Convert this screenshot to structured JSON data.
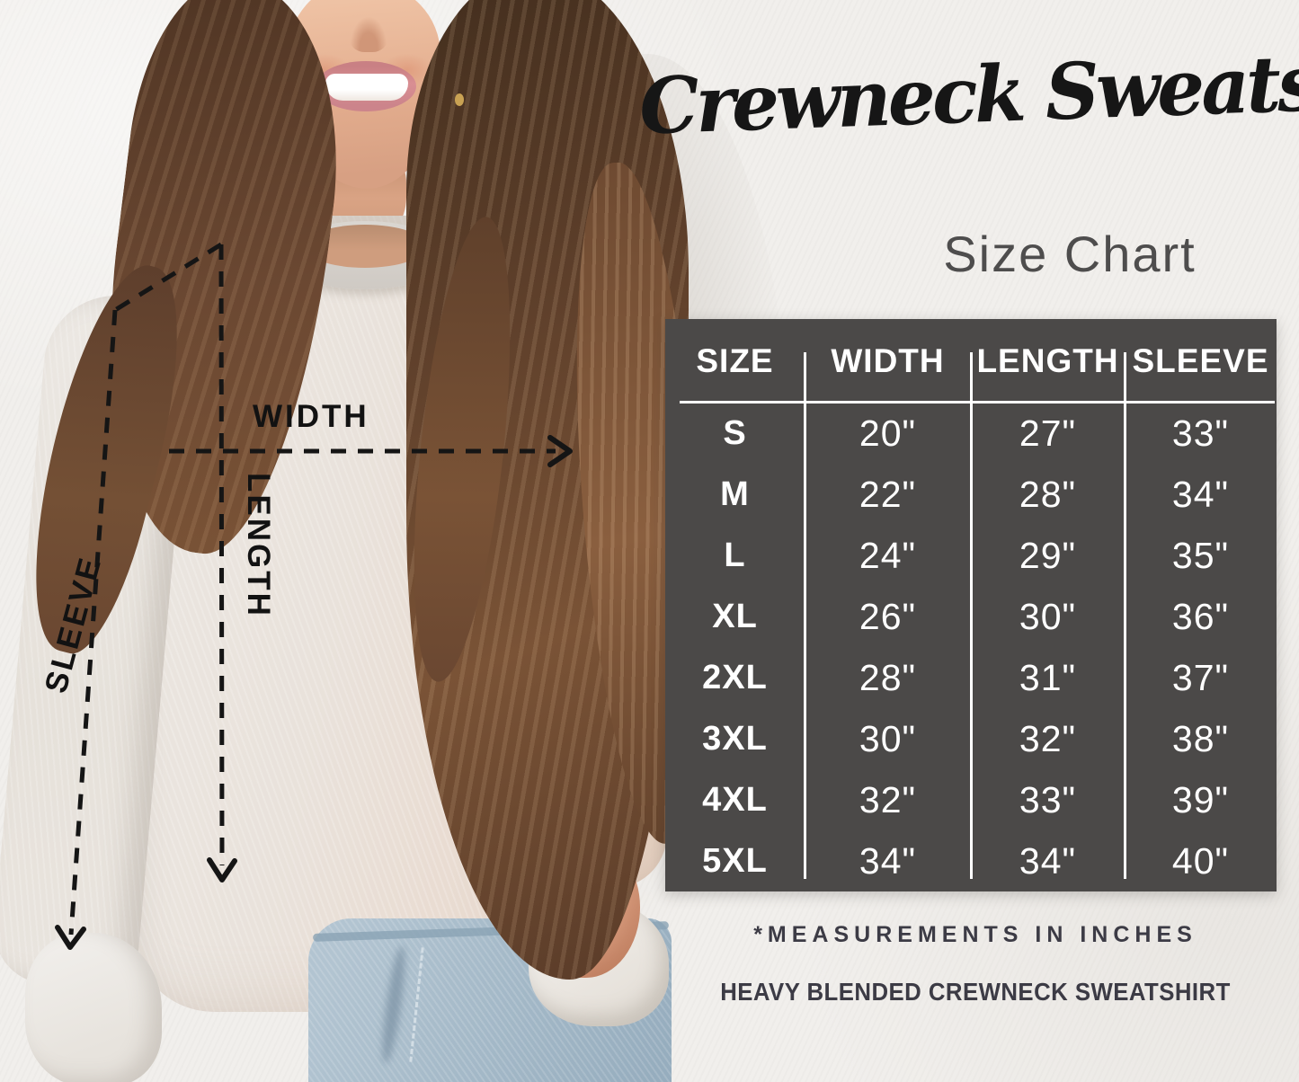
{
  "title": "Crewneck Sweatshirt",
  "subtitle": "Size Chart",
  "measurement_labels": {
    "width": "WIDTH",
    "length": "LENGTH",
    "sleeve": "SLEEVE"
  },
  "chart_data": {
    "type": "table",
    "title": "Crewneck Sweatshirt Size Chart",
    "columns": [
      "SIZE",
      "WIDTH",
      "LENGTH",
      "SLEEVE"
    ],
    "rows": [
      [
        "S",
        "20\"",
        "27\"",
        "33\""
      ],
      [
        "M",
        "22\"",
        "28\"",
        "34\""
      ],
      [
        "L",
        "24\"",
        "29\"",
        "35\""
      ],
      [
        "XL",
        "26\"",
        "30\"",
        "36\""
      ],
      [
        "2XL",
        "28\"",
        "31\"",
        "37\""
      ],
      [
        "3XL",
        "30\"",
        "32\"",
        "38\""
      ],
      [
        "4XL",
        "32\"",
        "33\"",
        "39\""
      ],
      [
        "5XL",
        "34\"",
        "34\"",
        "40\""
      ]
    ],
    "units": "inches"
  },
  "footnote_primary": "*MEASUREMENTS IN INCHES",
  "footnote_secondary": "HEAVY BLENDED CREWNECK SWEATSHIRT",
  "colors": {
    "wall_bg": "#f1efec",
    "table_bg": "#4b4948",
    "table_text": "#ffffff",
    "title_color": "#161616",
    "subtitle_color": "#4e4d4d",
    "footnote_color": "#3c3b45",
    "annotation_color": "#121212"
  }
}
